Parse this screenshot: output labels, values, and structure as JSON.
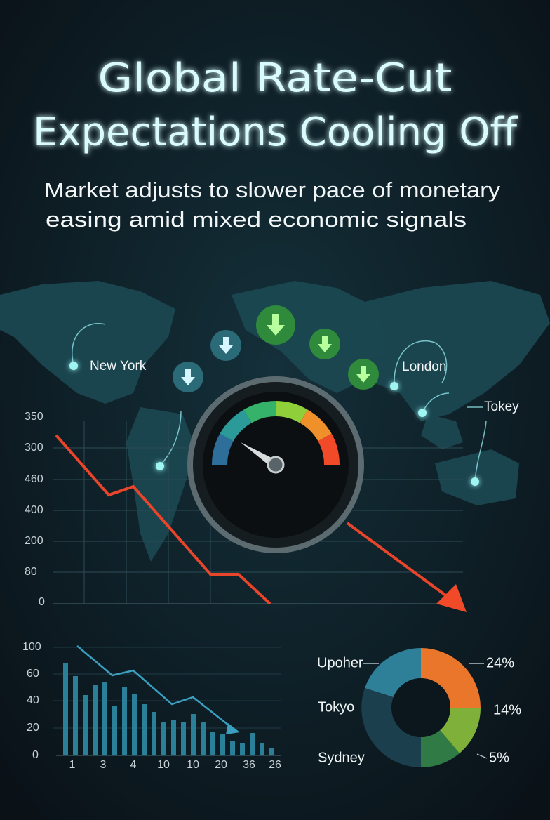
{
  "header": {
    "title": [
      "Global Rate-Cut",
      "Expectations Cooling Off"
    ],
    "subtitle": [
      "Market adjusts to slower pace of monetary",
      "easing amid mixed economic signals"
    ]
  },
  "map": {
    "labels": [
      "New York",
      "London",
      "Tokey"
    ]
  },
  "line_panel": {
    "y_labels": [
      "350",
      "300",
      "460",
      "400",
      "200",
      "80",
      "0"
    ]
  },
  "bar_panel": {
    "y_labels": [
      "100",
      "60",
      "40",
      "20",
      "0"
    ],
    "x_labels": [
      "1",
      "3",
      "4",
      "10",
      "10",
      "20",
      "36",
      "26"
    ]
  },
  "donut": {
    "labels": [
      "Upoher",
      "Tokyo",
      "Sydney"
    ],
    "percents": [
      "24%",
      "14%",
      "5%"
    ]
  }
}
